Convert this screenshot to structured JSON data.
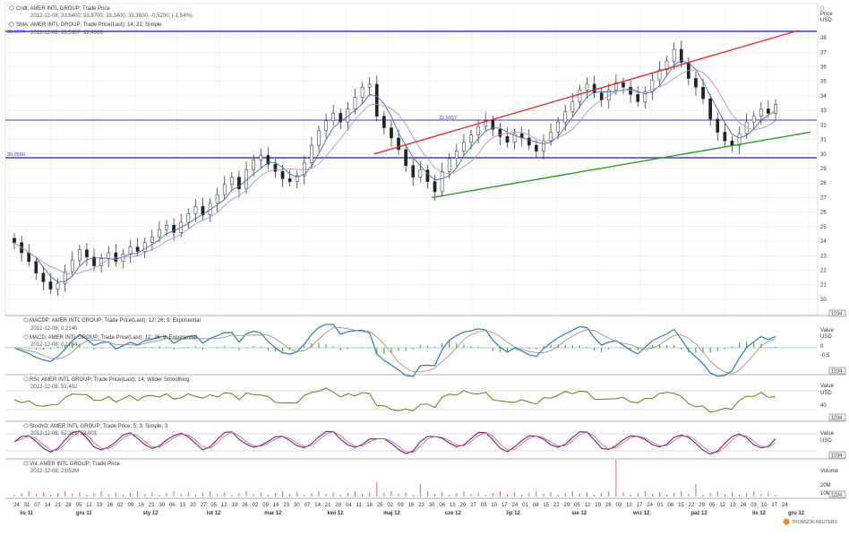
{
  "colors": {
    "candle": "#222222",
    "ma_short": "#3b6fb6",
    "ma_long": "#b98fd6",
    "hline": "#3a3ad0",
    "resistance": "#e03030",
    "support": "#2d9a2d",
    "macd": "#2b7bb9",
    "macd_signal": "#9b8a6a",
    "macd_hist": "#4a8a2a",
    "rsi": "#6b7a1e",
    "stoch_k": "#7a1f6a",
    "stoch_d": "#c05bb0",
    "volume": "#cc5577"
  },
  "legend": {
    "price_title": "Cndl; AMER INTL GROUP; Trade Price",
    "price_values": "2012-12-08; 33,8400; 33,8700; 33,1400; 33,3600; -0,5200; (-1,54%)",
    "ma_title": "SMA; AMER INTL GROUP; Trade Price(Last); 14; 21; Simple",
    "ma_values": "2012-12-08; 33,5907; 32,4363",
    "macd_title": "MACDP; AMER INTL GROUP; Trade Price(Last); 12; 26; 9; Exponential",
    "macd_values": "2012-12-08; 0,2140",
    "macd2_title": "MACD; AMER INTL GROUP; Trade Price(Last); 12; 26; 9; Exponential",
    "macd2_values": "2012-12-08; 0,1234",
    "rsi_title": "RSI; AMER INTL GROUP; Trade Price(Last); 14; Wilder Smoothing",
    "rsi_values": "2012-12-08; 51,402",
    "stoch_title": "StochO; AMER INTL GROUP; Trade Price; 5; 3; Simple; 3",
    "stoch_values": "2012-12-08; 52,121; 53,001",
    "vol_title": "Vol; AMER INTL GROUP; Trade Price",
    "vol_values": "2012-12-08; 2,052M"
  },
  "hlines": {
    "top_label": "38,6074",
    "mid_label": "32,5937",
    "low_label": "30,0550"
  },
  "axis_titles": {
    "price": "Price",
    "price_unit": "USD",
    "macd": "Value",
    "macd_unit": "USD",
    "rsi": "Value",
    "rsi_unit": "USD",
    "stoch": "Value",
    "stoch_unit": "USD",
    "volume": "Volume"
  },
  "panel_buttons": "1234",
  "price_ticks": [
    "38",
    "37",
    "36",
    "35",
    "34",
    "33",
    "32",
    "31",
    "30",
    "29",
    "28",
    "27",
    "26",
    "25",
    "24",
    "23",
    "22",
    "21",
    "20"
  ],
  "macd_ticks": [
    "0",
    "-0,5"
  ],
  "rsi_ticks": [
    "40"
  ],
  "vol_ticks": [
    "20M",
    "10M"
  ],
  "x_axis": {
    "days": [
      "24",
      "31",
      "07",
      "14",
      "21",
      "28",
      "05",
      "12",
      "19",
      "26",
      "02",
      "09",
      "16",
      "23",
      "30",
      "06",
      "13",
      "20",
      "27",
      "05",
      "12",
      "19",
      "26",
      "02",
      "09",
      "16",
      "23",
      "30",
      "07",
      "14",
      "21",
      "28",
      "04",
      "11",
      "18",
      "25",
      "02",
      "09",
      "16",
      "23",
      "30",
      "06",
      "13",
      "20",
      "27",
      "03",
      "10",
      "17",
      "24",
      "01",
      "08",
      "15",
      "22",
      "29",
      "05",
      "12",
      "19",
      "26",
      "03",
      "10",
      "17",
      "24",
      "01",
      "08",
      "15",
      "22",
      "29",
      "05",
      "12",
      "19",
      "26",
      "03",
      "10",
      "17",
      "24"
    ],
    "months": [
      {
        "label": "lis 11",
        "pos": 0.012
      },
      {
        "label": "gru 11",
        "pos": 0.085
      },
      {
        "label": "sty 12",
        "pos": 0.172
      },
      {
        "label": "lut 12",
        "pos": 0.255
      },
      {
        "label": "mar 12",
        "pos": 0.33
      },
      {
        "label": "kwi 12",
        "pos": 0.412
      },
      {
        "label": "maj 12",
        "pos": 0.485
      },
      {
        "label": "cze 12",
        "pos": 0.565
      },
      {
        "label": "lip 12",
        "pos": 0.645
      },
      {
        "label": "sie 12",
        "pos": 0.73
      },
      {
        "label": "wrz 12",
        "pos": 0.81
      },
      {
        "label": "paź 12",
        "pos": 0.885
      },
      {
        "label": "lis 12",
        "pos": 0.965
      },
      {
        "label": "gru 12",
        "pos": 1.04
      }
    ]
  },
  "brand": "THOMSON REUTERS",
  "chart_data": {
    "type": "candlestick",
    "title": "",
    "ylim": [
      19.5,
      38.5
    ],
    "hlines": [
      38.6074,
      32.5937,
      30.055
    ],
    "trendlines": [
      {
        "name": "resistance",
        "from": [
          0.473,
          30.0
        ],
        "to": [
          1.025,
          38.5
        ]
      },
      {
        "name": "support",
        "from": [
          0.548,
          27.0
        ],
        "to": [
          1.125,
          31.5
        ]
      }
    ],
    "close": [
      23.9,
      23.2,
      22.6,
      21.8,
      21.2,
      20.7,
      21.1,
      21.9,
      22.7,
      23.4,
      22.9,
      22.3,
      22.8,
      23.2,
      22.6,
      23.1,
      23.6,
      23.3,
      23.9,
      24.3,
      24.8,
      25.1,
      24.6,
      25.3,
      25.9,
      26.4,
      25.8,
      26.6,
      27.2,
      27.9,
      28.4,
      27.6,
      28.9,
      29.6,
      29.9,
      29.3,
      28.8,
      28.3,
      28.1,
      28.5,
      29.4,
      30.6,
      31.6,
      32.3,
      32.8,
      32.2,
      33.1,
      33.9,
      34.6,
      34.8,
      32.6,
      31.8,
      31.1,
      30.3,
      29.2,
      28.4,
      28.9,
      28.1,
      27.4,
      28.8,
      29.7,
      30.2,
      30.8,
      31.3,
      31.9,
      32.3,
      31.7,
      31.2,
      30.8,
      31.4,
      31.1,
      30.6,
      30.2,
      30.9,
      31.5,
      32.2,
      32.9,
      33.6,
      34.4,
      34.8,
      34.2,
      33.7,
      34.4,
      34.9,
      34.6,
      34.1,
      33.6,
      34.3,
      35.1,
      35.8,
      36.4,
      37.2,
      36.3,
      35.2,
      34.6,
      33.8,
      32.4,
      31.5,
      30.9,
      30.6,
      31.4,
      32.2,
      32.6,
      33.1,
      32.8,
      33.4
    ]
  }
}
